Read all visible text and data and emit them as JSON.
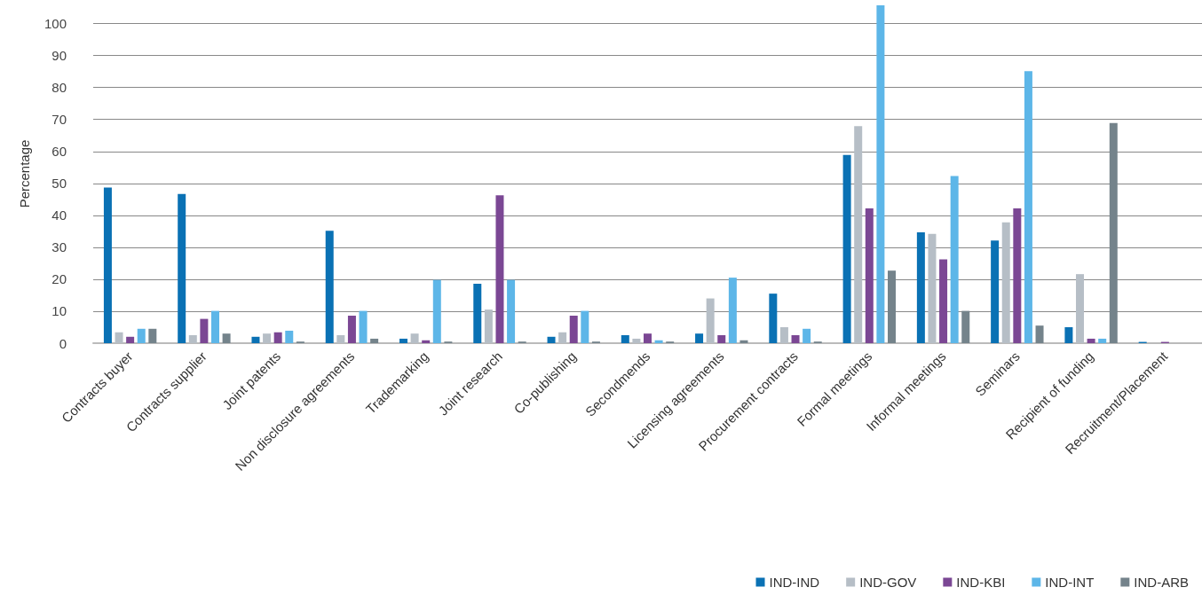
{
  "chart_data": {
    "type": "bar",
    "ylabel": "Percentage",
    "categories": [
      "Contracts buyer",
      "Contracts supplier",
      "Joint patents",
      "Non disclosure agreements",
      "Trademarking",
      "Joint research",
      "Co-publishing",
      "Secondmends",
      "Licensing agreements",
      "Procurement contracts",
      "Formal meetings",
      "Informal meetings",
      "Seminars",
      "Recipient of funding",
      "Recruitment/Placement"
    ],
    "series": [
      {
        "name": "IND-IND",
        "color": "#0a71b4",
        "values": [
          48.7,
          46.7,
          2.0,
          35.2,
          1.4,
          18.6,
          2.0,
          2.5,
          3.0,
          15.5,
          58.9,
          34.7,
          32.1,
          5.0,
          0.4
        ]
      },
      {
        "name": "IND-GOV",
        "color": "#b6bec6",
        "values": [
          3.4,
          2.5,
          3.0,
          2.5,
          3.0,
          10.5,
          3.4,
          1.4,
          14.0,
          5.0,
          67.9,
          34.2,
          37.8,
          21.6,
          0
        ]
      },
      {
        "name": "IND-KBI",
        "color": "#7b4794",
        "values": [
          2.0,
          7.6,
          3.4,
          8.6,
          0.9,
          46.3,
          8.6,
          3.0,
          2.5,
          2.5,
          42.2,
          26.2,
          42.2,
          1.4,
          0.4
        ]
      },
      {
        "name": "IND-INT",
        "color": "#5db6e8",
        "values": [
          4.5,
          10.1,
          3.9,
          10.1,
          19.8,
          19.8,
          10.1,
          0.9,
          20.5,
          4.5,
          105.7,
          52.3,
          85.1,
          1.4,
          0
        ]
      },
      {
        "name": "IND-ARB",
        "color": "#74838b",
        "values": [
          4.5,
          3.0,
          0.5,
          1.4,
          0.5,
          0.5,
          0.5,
          0.5,
          0.9,
          0.5,
          22.7,
          10.1,
          5.5,
          68.9,
          0
        ]
      }
    ],
    "ylim": [
      0,
      106
    ],
    "yticks": [
      0,
      10,
      20,
      30,
      40,
      50,
      60,
      70,
      80,
      90,
      100
    ],
    "grid": "y",
    "legend": "bottom right"
  }
}
